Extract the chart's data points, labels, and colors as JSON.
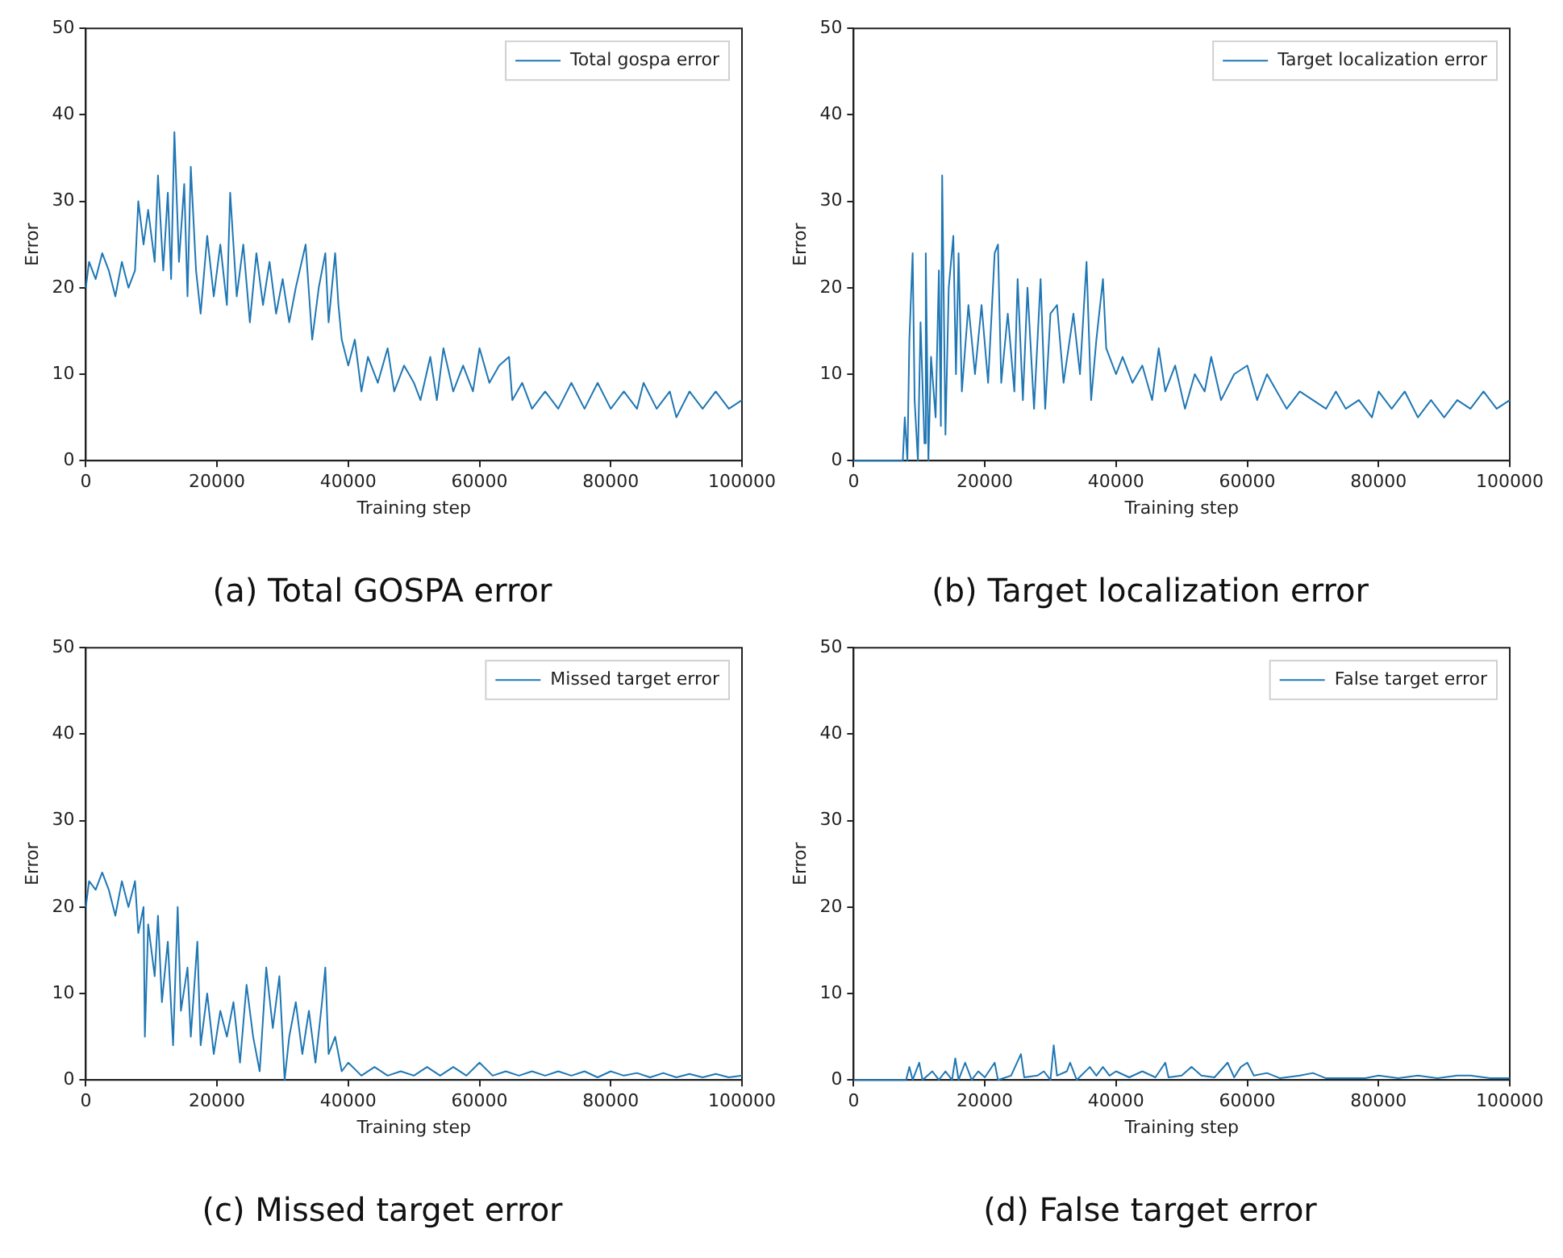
{
  "chart_data": [
    {
      "type": "line",
      "title": "(a) Total GOSPA error",
      "xlabel": "Training step",
      "ylabel": "Error",
      "legend": "top right",
      "xlim": [
        0,
        100000
      ],
      "ylim": [
        0,
        50
      ],
      "xticks": [
        0,
        20000,
        40000,
        60000,
        80000,
        100000
      ],
      "yticks": [
        0,
        10,
        20,
        30,
        40,
        50
      ],
      "x": [
        0,
        500,
        1500,
        2500,
        3500,
        4500,
        5500,
        6500,
        7500,
        8000,
        8800,
        9500,
        10500,
        11000,
        11800,
        12500,
        13000,
        13500,
        14200,
        15000,
        15500,
        16000,
        16800,
        17500,
        18500,
        19500,
        20500,
        21500,
        22000,
        23000,
        24000,
        25000,
        26000,
        27000,
        28000,
        29000,
        30000,
        31000,
        32000,
        33500,
        34500,
        35500,
        36500,
        37000,
        38000,
        38500,
        39000,
        40000,
        41000,
        42000,
        43000,
        44500,
        46000,
        47000,
        48500,
        50000,
        51000,
        52500,
        53500,
        54500,
        56000,
        57500,
        59000,
        60000,
        61500,
        63000,
        64500,
        65000,
        66500,
        68000,
        70000,
        72000,
        74000,
        76000,
        78000,
        80000,
        82000,
        84000,
        85000,
        87000,
        89000,
        90000,
        92000,
        94000,
        96000,
        98000,
        100000
      ],
      "series": [
        {
          "name": "Total gospa error",
          "color": "#1f77b4",
          "values": [
            20,
            23,
            21,
            24,
            22,
            19,
            23,
            20,
            22,
            30,
            25,
            29,
            23,
            33,
            22,
            31,
            21,
            38,
            23,
            32,
            19,
            34,
            22,
            17,
            26,
            19,
            25,
            18,
            31,
            19,
            25,
            16,
            24,
            18,
            23,
            17,
            21,
            16,
            20,
            25,
            14,
            20,
            24,
            16,
            24,
            18,
            14,
            11,
            14,
            8,
            12,
            9,
            13,
            8,
            11,
            9,
            7,
            12,
            7,
            13,
            8,
            11,
            8,
            13,
            9,
            11,
            12,
            7,
            9,
            6,
            8,
            6,
            9,
            6,
            9,
            6,
            8,
            6,
            9,
            6,
            8,
            5,
            8,
            6,
            8,
            6,
            7
          ]
        }
      ]
    },
    {
      "type": "line",
      "title": "(b) Target localization error",
      "xlabel": "Training step",
      "ylabel": "Error",
      "legend": "top right",
      "xlim": [
        0,
        100000
      ],
      "ylim": [
        0,
        50
      ],
      "xticks": [
        0,
        20000,
        40000,
        60000,
        80000,
        100000
      ],
      "yticks": [
        0,
        10,
        20,
        30,
        40,
        50
      ],
      "x": [
        0,
        7500,
        7800,
        8200,
        8500,
        9000,
        9300,
        9800,
        10200,
        10800,
        11000,
        11400,
        11800,
        12500,
        13000,
        13300,
        13500,
        14000,
        14500,
        15200,
        15600,
        16000,
        16500,
        17500,
        18500,
        19500,
        20500,
        21500,
        22000,
        22500,
        23500,
        24500,
        25000,
        25800,
        26500,
        27500,
        28500,
        29200,
        30000,
        31000,
        32000,
        33500,
        34500,
        35500,
        36200,
        37000,
        38000,
        38500,
        40000,
        41000,
        42500,
        44000,
        45500,
        46500,
        47500,
        49000,
        50500,
        52000,
        53500,
        54500,
        56000,
        58000,
        60000,
        61500,
        63000,
        64500,
        66000,
        68000,
        70000,
        72000,
        73500,
        75000,
        77000,
        79000,
        80000,
        82000,
        84000,
        86000,
        88000,
        90000,
        92000,
        94000,
        96000,
        98000,
        100000
      ],
      "series": [
        {
          "name": "Target localization error",
          "color": "#1f77b4",
          "values": [
            0,
            0,
            5,
            0,
            14,
            24,
            7,
            0,
            16,
            2,
            24,
            0,
            12,
            5,
            22,
            4,
            33,
            3,
            20,
            26,
            10,
            24,
            8,
            18,
            10,
            18,
            9,
            24,
            25,
            9,
            17,
            8,
            21,
            7,
            20,
            6,
            21,
            6,
            17,
            18,
            9,
            17,
            10,
            23,
            7,
            14,
            21,
            13,
            10,
            12,
            9,
            11,
            7,
            13,
            8,
            11,
            6,
            10,
            8,
            12,
            7,
            10,
            11,
            7,
            10,
            8,
            6,
            8,
            7,
            6,
            8,
            6,
            7,
            5,
            8,
            6,
            8,
            5,
            7,
            5,
            7,
            6,
            8,
            6,
            7
          ]
        }
      ]
    },
    {
      "type": "line",
      "title": "(c) Missed target error",
      "xlabel": "Training step",
      "ylabel": "Error",
      "legend": "top right",
      "xlim": [
        0,
        100000
      ],
      "ylim": [
        0,
        50
      ],
      "xticks": [
        0,
        20000,
        40000,
        60000,
        80000,
        100000
      ],
      "yticks": [
        0,
        10,
        20,
        30,
        40,
        50
      ],
      "x": [
        0,
        500,
        1500,
        2500,
        3500,
        4500,
        5500,
        6500,
        7500,
        8000,
        8800,
        9000,
        9500,
        10500,
        11000,
        11600,
        12500,
        13300,
        14000,
        14500,
        15500,
        16000,
        17000,
        17500,
        18500,
        19500,
        20500,
        21500,
        22500,
        23500,
        24500,
        25500,
        26500,
        27500,
        28500,
        29500,
        30300,
        31000,
        32000,
        33000,
        34000,
        35000,
        36000,
        36500,
        37000,
        38000,
        39000,
        40000,
        42000,
        44000,
        46000,
        48000,
        50000,
        52000,
        54000,
        56000,
        58000,
        60000,
        62000,
        64000,
        66000,
        68000,
        70000,
        72000,
        74000,
        76000,
        78000,
        80000,
        82000,
        84000,
        86000,
        88000,
        90000,
        92000,
        94000,
        96000,
        98000,
        100000
      ],
      "series": [
        {
          "name": "Missed target error",
          "color": "#1f77b4",
          "values": [
            20,
            23,
            22,
            24,
            22,
            19,
            23,
            20,
            23,
            17,
            20,
            5,
            18,
            12,
            19,
            9,
            16,
            4,
            20,
            8,
            13,
            5,
            16,
            4,
            10,
            3,
            8,
            5,
            9,
            2,
            11,
            5,
            1,
            13,
            6,
            12,
            0,
            5,
            9,
            3,
            8,
            2,
            9,
            13,
            3,
            5,
            1,
            2,
            0.5,
            1.5,
            0.5,
            1,
            0.5,
            1.5,
            0.5,
            1.5,
            0.5,
            2,
            0.5,
            1,
            0.5,
            1,
            0.5,
            1,
            0.5,
            1,
            0.3,
            1,
            0.5,
            0.8,
            0.3,
            0.8,
            0.3,
            0.7,
            0.3,
            0.7,
            0.3,
            0.5
          ]
        }
      ]
    },
    {
      "type": "line",
      "title": "(d) False target error",
      "xlabel": "Training step",
      "ylabel": "Error",
      "legend": "top right",
      "xlim": [
        0,
        100000
      ],
      "ylim": [
        0,
        50
      ],
      "xticks": [
        0,
        20000,
        40000,
        60000,
        80000,
        100000
      ],
      "yticks": [
        0,
        10,
        20,
        30,
        40,
        50
      ],
      "x": [
        0,
        8000,
        8500,
        9000,
        10000,
        10500,
        12000,
        13000,
        14000,
        15000,
        15500,
        16000,
        17000,
        18000,
        19000,
        20000,
        21500,
        22000,
        24000,
        25500,
        26000,
        28000,
        29000,
        30000,
        30500,
        31000,
        32500,
        33000,
        34000,
        36000,
        37000,
        38000,
        39000,
        40000,
        42000,
        44000,
        46000,
        47500,
        48000,
        50000,
        51500,
        53000,
        55000,
        57000,
        58000,
        59000,
        60000,
        61000,
        63000,
        65000,
        68000,
        70000,
        72000,
        75000,
        78000,
        80000,
        83000,
        86000,
        89000,
        92000,
        94000,
        97000,
        100000
      ],
      "series": [
        {
          "name": "False target error",
          "color": "#1f77b4",
          "values": [
            0,
            0,
            1.5,
            0,
            2,
            0,
            1,
            0,
            1,
            0,
            2.5,
            0,
            2,
            0,
            1,
            0.3,
            2,
            0,
            0.5,
            3,
            0.3,
            0.5,
            1,
            0,
            4,
            0.5,
            1,
            2,
            0,
            1.5,
            0.5,
            1.5,
            0.5,
            1,
            0.3,
            1,
            0.3,
            2,
            0.3,
            0.5,
            1.5,
            0.5,
            0.3,
            2,
            0.3,
            1.5,
            2,
            0.5,
            0.8,
            0.2,
            0.5,
            0.8,
            0.2,
            0.2,
            0.2,
            0.5,
            0.2,
            0.5,
            0.2,
            0.5,
            0.5,
            0.2,
            0.2
          ]
        }
      ]
    }
  ]
}
